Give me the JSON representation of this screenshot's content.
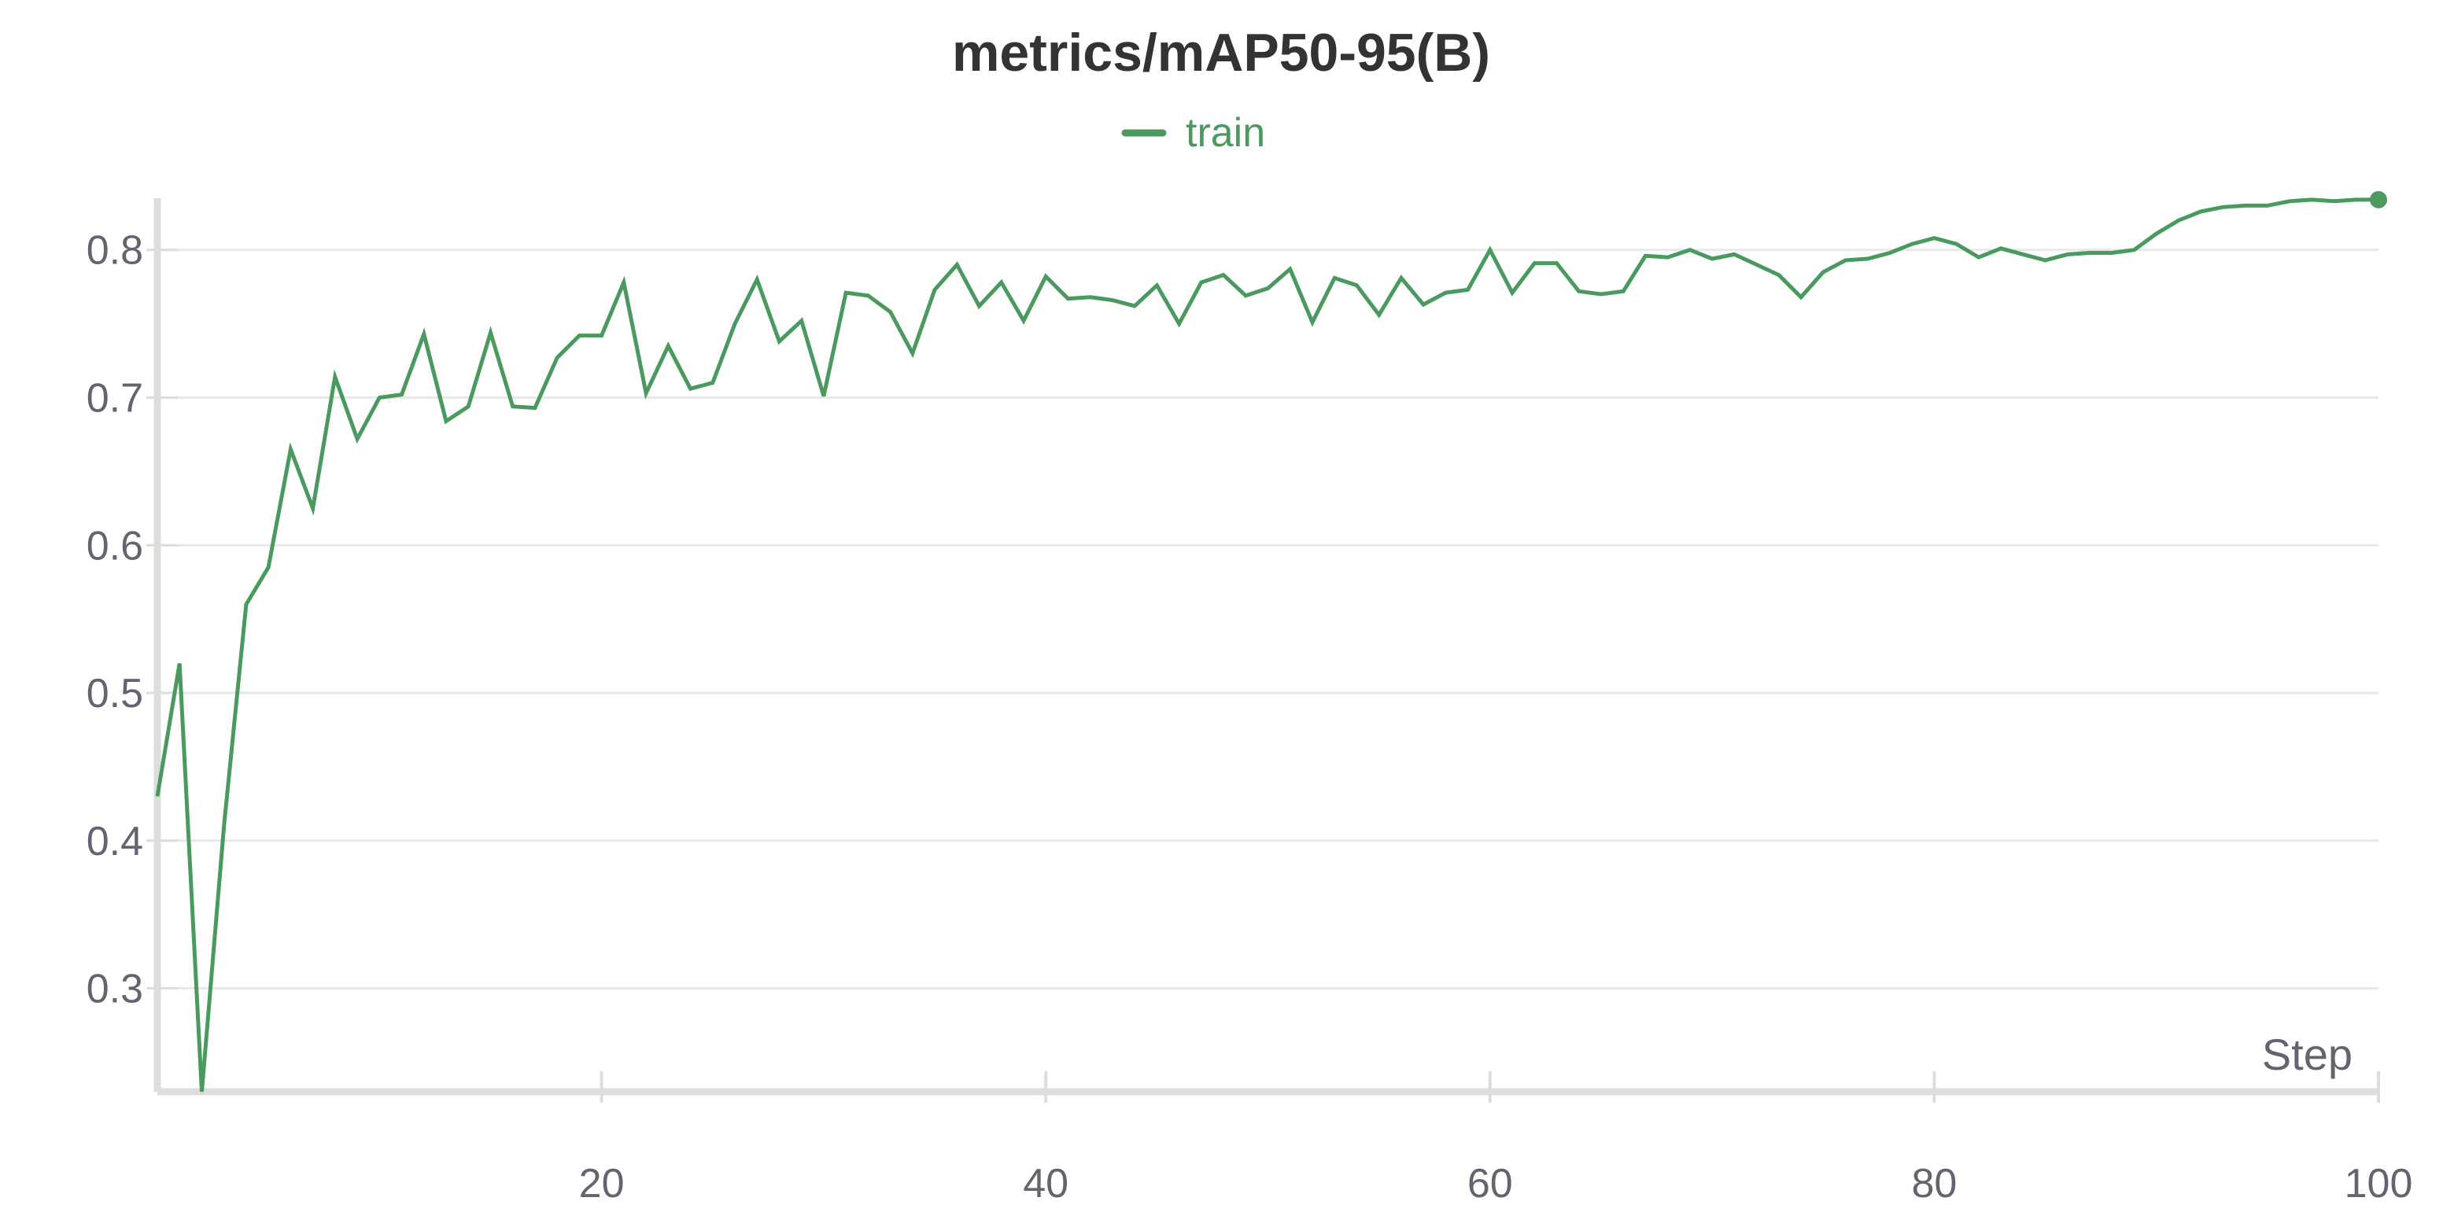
{
  "chart_data": {
    "type": "line",
    "title": "metrics/mAP50-95(B)",
    "xlabel": "Step",
    "ylabel": "",
    "xlim": [
      0,
      100
    ],
    "ylim": [
      0.23,
      0.835
    ],
    "x_ticks": [
      20,
      40,
      60,
      80,
      100
    ],
    "y_ticks": [
      0.3,
      0.4,
      0.5,
      0.6,
      0.7,
      0.8
    ],
    "grid": "horizontal",
    "legend_position": "top-center",
    "colors": {
      "series": "#4a9a5f",
      "grid": "#e8e8e8",
      "axis": "#dddddd",
      "text": "#666370",
      "title": "#333333"
    },
    "series": [
      {
        "name": "train",
        "color": "#4a9a5f",
        "x": [
          0,
          1,
          2,
          3,
          4,
          5,
          6,
          7,
          8,
          9,
          10,
          11,
          12,
          13,
          14,
          15,
          16,
          17,
          18,
          19,
          20,
          21,
          22,
          23,
          24,
          25,
          26,
          27,
          28,
          29,
          30,
          31,
          32,
          33,
          34,
          35,
          36,
          37,
          38,
          39,
          40,
          41,
          42,
          43,
          44,
          45,
          46,
          47,
          48,
          49,
          50,
          51,
          52,
          53,
          54,
          55,
          56,
          57,
          58,
          59,
          60,
          61,
          62,
          63,
          64,
          65,
          66,
          67,
          68,
          69,
          70,
          71,
          72,
          73,
          74,
          75,
          76,
          77,
          78,
          79,
          80,
          81,
          82,
          83,
          84,
          85,
          86,
          87,
          88,
          89,
          90,
          91,
          92,
          93,
          94,
          95,
          96,
          97,
          98,
          99,
          100
        ],
        "y": [
          0.43,
          0.52,
          0.23,
          0.41,
          0.56,
          0.585,
          0.665,
          0.625,
          0.714,
          0.672,
          0.7,
          0.702,
          0.743,
          0.684,
          0.694,
          0.744,
          0.694,
          0.693,
          0.727,
          0.742,
          0.742,
          0.778,
          0.703,
          0.735,
          0.706,
          0.71,
          0.75,
          0.78,
          0.738,
          0.752,
          0.701,
          0.771,
          0.769,
          0.758,
          0.73,
          0.773,
          0.79,
          0.762,
          0.778,
          0.752,
          0.782,
          0.767,
          0.768,
          0.766,
          0.762,
          0.776,
          0.75,
          0.778,
          0.783,
          0.769,
          0.774,
          0.787,
          0.751,
          0.781,
          0.776,
          0.756,
          0.781,
          0.763,
          0.771,
          0.773,
          0.8,
          0.771,
          0.791,
          0.791,
          0.772,
          0.77,
          0.772,
          0.796,
          0.795,
          0.8,
          0.794,
          0.797,
          0.79,
          0.783,
          0.768,
          0.785,
          0.793,
          0.794,
          0.798,
          0.804,
          0.808,
          0.804,
          0.795,
          0.801,
          0.797,
          0.793,
          0.797,
          0.798,
          0.798,
          0.8,
          0.811,
          0.82,
          0.826,
          0.829,
          0.83,
          0.83,
          0.833,
          0.834,
          0.833,
          0.834,
          0.834
        ]
      }
    ]
  }
}
